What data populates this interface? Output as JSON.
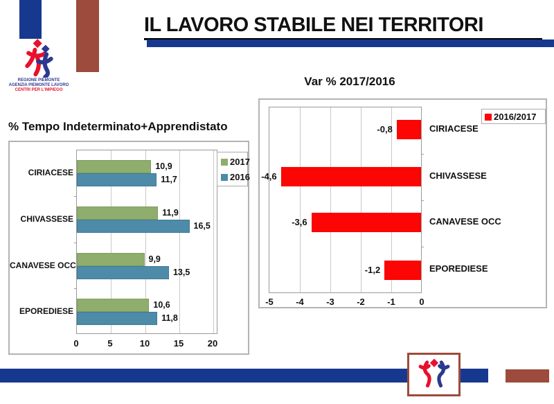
{
  "slide": {
    "title": "IL LAVORO STABILE NEI TERRITORI"
  },
  "logo": {
    "line1": "REGIONE PIEMONTE",
    "line2": "AGENZIA PIEMONTE LAVORO",
    "line3": "CENTRI PER L'IMPIEGO"
  },
  "colors": {
    "accent_blue": "#16398F",
    "accent_maroon": "#9C4B3C",
    "bar_green_2017": "#8FAE6E",
    "bar_blue_2016": "#4D8BA8",
    "bar_red": "#FB0505",
    "logo_red": "#E8112D",
    "logo_blue": "#2B3990"
  },
  "chart_data": [
    {
      "type": "bar",
      "orientation": "horizontal",
      "title": "% Tempo Indeterminato+Apprendistato",
      "categories": [
        "CIRIACESE",
        "CHIVASSESE",
        "CANAVESE OCC",
        "EPOREDIESE"
      ],
      "series": [
        {
          "name": "2017",
          "color": "#8FAE6E",
          "values": [
            10.9,
            11.9,
            9.9,
            10.6
          ],
          "labels": [
            "10,9",
            "11,9",
            "9,9",
            "10,6"
          ]
        },
        {
          "name": "2016",
          "color": "#4D8BA8",
          "values": [
            11.7,
            16.5,
            13.5,
            11.8
          ],
          "labels": [
            "11,7",
            "16,5",
            "13,5",
            "11,8"
          ]
        }
      ],
      "xlim": [
        0,
        20
      ],
      "xticks": [
        "0",
        "5",
        "10",
        "15",
        "20"
      ],
      "grid": true,
      "legend_position": "top-right"
    },
    {
      "type": "bar",
      "orientation": "horizontal",
      "title": "Var % 2017/2016",
      "categories": [
        "CIRIACESE",
        "CHIVASSESE",
        "CANAVESE OCC",
        "EPOREDIESE"
      ],
      "series": [
        {
          "name": "2016/2017",
          "color": "#FB0505",
          "values": [
            -0.8,
            -4.6,
            -3.6,
            -1.2
          ],
          "labels": [
            "-0,8",
            "-4,6",
            "-3,6",
            "-1,2"
          ]
        }
      ],
      "xlim": [
        -5,
        0
      ],
      "xticks": [
        "-5",
        "-4",
        "-3",
        "-2",
        "-1",
        "0"
      ],
      "grid": true,
      "legend_position": "top-right"
    }
  ]
}
